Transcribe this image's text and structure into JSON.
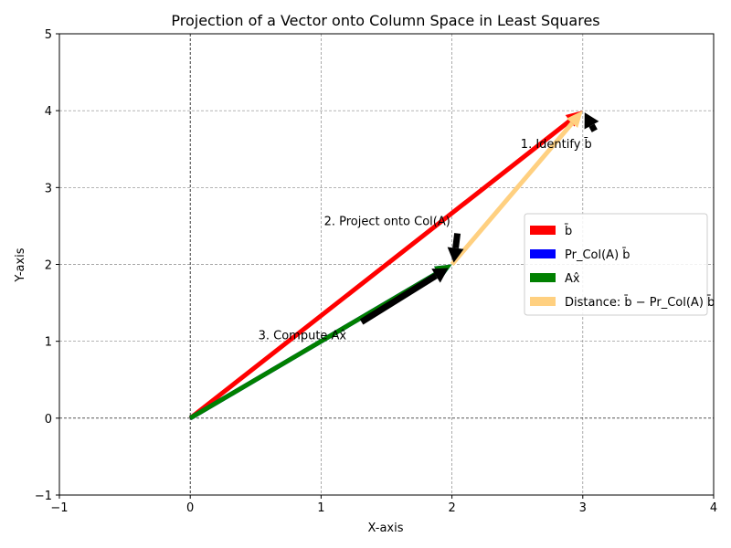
{
  "chart_data": {
    "type": "vector",
    "title": "Projection of a Vector onto Column Space in Least Squares",
    "xlabel": "X-axis",
    "ylabel": "Y-axis",
    "xlim": [
      -1,
      4
    ],
    "ylim": [
      -1,
      5
    ],
    "xticks": [
      -1,
      0,
      1,
      2,
      3,
      4
    ],
    "yticks": [
      -1,
      0,
      1,
      2,
      3,
      4,
      5
    ],
    "grid": true,
    "legend_position": "center-right",
    "series": [
      {
        "name": "b̄",
        "from": [
          0,
          0
        ],
        "to": [
          3,
          4
        ],
        "color": "#ff0000"
      },
      {
        "name": "Pr_Col(A) b̄",
        "from": [
          0,
          0
        ],
        "to": [
          2,
          2
        ],
        "color": "#0000ff"
      },
      {
        "name": "Ax̂",
        "from": [
          0,
          0
        ],
        "to": [
          2,
          2
        ],
        "color": "#008000"
      },
      {
        "name": "Distance: b̄ − Pr_Col(A) b̄",
        "from": [
          2,
          2
        ],
        "to": [
          3,
          4
        ],
        "color": "#ffd080"
      }
    ],
    "annotations": [
      {
        "text": "1. Identify b̄",
        "text_at": [
          2.5,
          3.5
        ],
        "arrow_to": [
          3,
          4
        ]
      },
      {
        "text": "2. Project onto Col(A)",
        "text_at": [
          1,
          2.5
        ],
        "arrow_to": [
          2,
          2
        ]
      },
      {
        "text": "3. Compute Ax̂",
        "text_at": [
          0.5,
          1
        ],
        "arrow_to": [
          2,
          2
        ]
      }
    ]
  }
}
